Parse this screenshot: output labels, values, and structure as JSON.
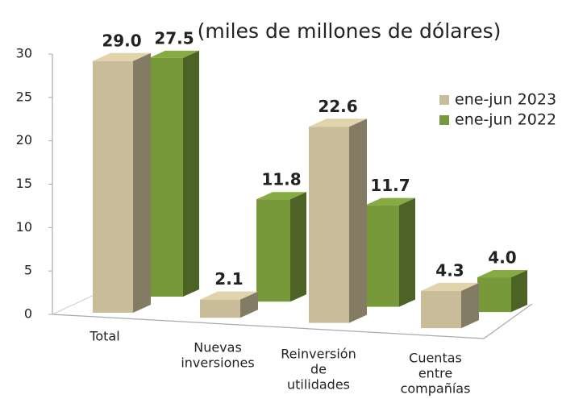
{
  "chart_data": {
    "type": "bar3d",
    "title": "(miles de millones de dólares)",
    "categories": [
      [
        "Total"
      ],
      [
        "Nuevas",
        "inversiones"
      ],
      [
        "Reinversión",
        "de",
        "utilidades"
      ],
      [
        "Cuentas",
        "entre",
        "compañías"
      ]
    ],
    "series": [
      {
        "name": "ene-jun 2023",
        "color": "#c9bd99",
        "values": [
          29.0,
          2.1,
          22.6,
          4.3
        ],
        "value_labels": [
          "29.0",
          "2.1",
          "22.6",
          "4.3"
        ]
      },
      {
        "name": "ene-jun 2022",
        "color": "#77993a",
        "values": [
          27.5,
          11.8,
          11.7,
          4.0
        ],
        "value_labels": [
          "27.5",
          "11.8",
          "11.7",
          "4.0"
        ]
      }
    ],
    "ylim": [
      0,
      30
    ],
    "yticks": [
      0,
      5,
      10,
      15,
      20,
      25,
      30
    ],
    "legend": "right"
  }
}
